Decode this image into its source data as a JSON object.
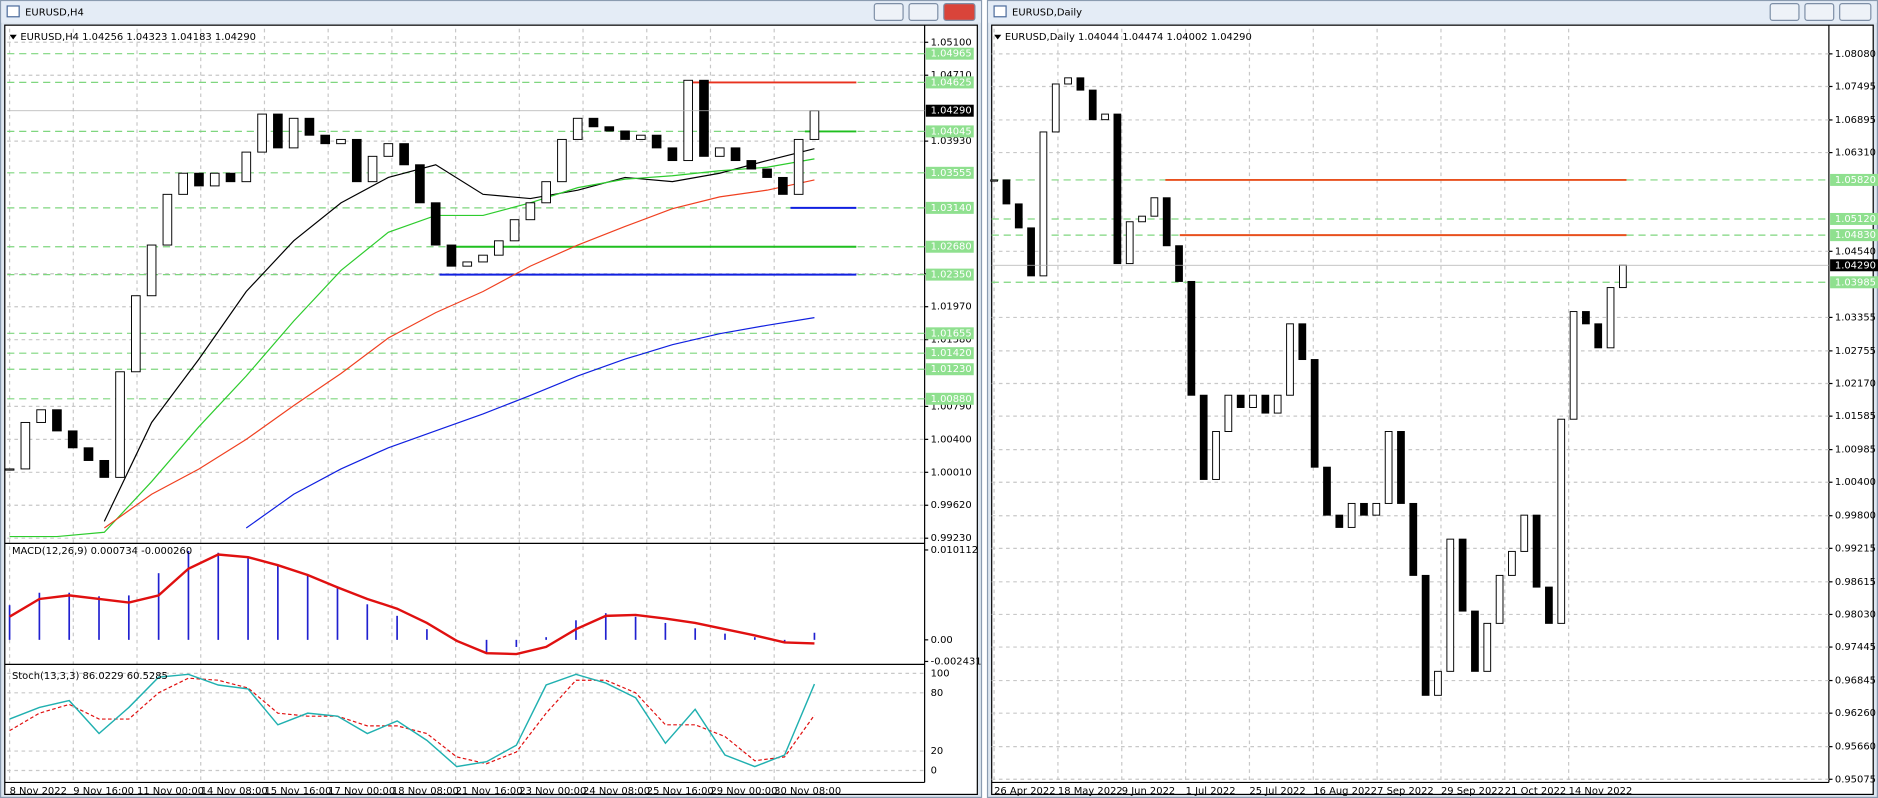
{
  "windows": [
    {
      "title": "EURUSD,H4",
      "info": "EURUSD,H4  1.04256 1.04323 1.04183 1.04290",
      "price": {
        "ylim": [
          0.9919,
          1.0526
        ],
        "yticks": [
          {
            "value": 1.051,
            "label": "1.05100"
          },
          {
            "value": 1.0471,
            "label": "1.04710"
          },
          {
            "value": 1.0393,
            "label": "1.03930"
          },
          {
            "value": 1.0236,
            "label": "1.02360"
          },
          {
            "value": 1.0197,
            "label": "1.01970"
          },
          {
            "value": 1.0158,
            "label": "1.01580"
          },
          {
            "value": 1.0079,
            "label": "1.00790"
          },
          {
            "value": 1.004,
            "label": "1.00400"
          },
          {
            "value": 1.0001,
            "label": "1.00010"
          },
          {
            "value": 0.9962,
            "label": "0.99620"
          },
          {
            "value": 0.9923,
            "label": "0.99230"
          }
        ],
        "levels": [
          {
            "value": 1.04965,
            "label": "1.04965"
          },
          {
            "value": 1.04625,
            "label": "1.04625",
            "segment_color": "#e8321e"
          },
          {
            "value": 1.04045,
            "label": "1.04045",
            "segment_color": "#1fbf1f"
          },
          {
            "value": 1.03555,
            "label": "1.03555"
          },
          {
            "value": 1.0314,
            "label": "1.03140",
            "segment_color": "#1020e0"
          },
          {
            "value": 1.0268,
            "label": "1.02680",
            "segment_color": "#1fbf1f"
          },
          {
            "value": 1.0235,
            "label": "1.02350",
            "segment_color": "#1020e0"
          },
          {
            "value": 1.01655,
            "label": "1.01655"
          },
          {
            "value": 1.0142,
            "label": "1.01420"
          },
          {
            "value": 1.0123,
            "label": "1.01230"
          },
          {
            "value": 1.0088,
            "label": "1.00880"
          }
        ],
        "current": {
          "value": 1.0429,
          "label": "1.04290"
        },
        "close": [
          1.0005,
          1.006,
          1.0075,
          1.005,
          1.003,
          1.0015,
          0.9995,
          1.012,
          1.021,
          1.027,
          1.033,
          1.0355,
          1.034,
          1.0355,
          1.0345,
          1.038,
          1.0425,
          1.0385,
          1.042,
          1.04,
          1.039,
          1.0395,
          1.0345,
          1.0375,
          1.039,
          1.0365,
          1.032,
          1.027,
          1.0245,
          1.025,
          1.0258,
          1.0275,
          1.03,
          1.032,
          1.0345,
          1.0395,
          1.042,
          1.041,
          1.0405,
          1.0395,
          1.04,
          1.0385,
          1.037,
          1.0465,
          1.0375,
          1.0385,
          1.037,
          1.036,
          1.035,
          1.033,
          1.0395,
          1.0429
        ],
        "ma": [
          {
            "color": "#000000",
            "values": [
              null,
              null,
              0.9943,
              1.006,
              1.0135,
              1.0215,
              1.0275,
              1.032,
              1.035,
              1.0365,
              1.033,
              1.0325,
              1.0335,
              1.035,
              1.0345,
              1.0355,
              1.037,
              1.0384
            ]
          },
          {
            "color": "#2ecc2e",
            "values": [
              0.9925,
              0.9925,
              0.993,
              0.999,
              1.0055,
              1.0115,
              1.018,
              1.024,
              1.0285,
              1.0305,
              1.0305,
              1.032,
              1.0338,
              1.0348,
              1.0352,
              1.0358,
              1.0362,
              1.0372
            ]
          },
          {
            "color": "#f04020",
            "values": [
              null,
              null,
              0.9935,
              0.9975,
              1.0005,
              1.004,
              1.008,
              1.0118,
              1.016,
              1.019,
              1.0215,
              1.0245,
              1.027,
              1.0292,
              1.0313,
              1.0327,
              1.0335,
              1.0347
            ]
          },
          {
            "color": "#1020e0",
            "values": [
              null,
              null,
              null,
              null,
              null,
              0.9935,
              0.9975,
              1.0005,
              1.003,
              1.005,
              1.007,
              1.0092,
              1.0115,
              1.0135,
              1.0152,
              1.0165,
              1.0175,
              1.0184
            ]
          }
        ]
      },
      "time_labels": [
        "8 Nov 2022",
        "9 Nov 16:00",
        "11 Nov 00:00",
        "14 Nov 08:00",
        "15 Nov 16:00",
        "17 Nov 00:00",
        "18 Nov 08:00",
        "21 Nov 16:00",
        "23 Nov 00:00",
        "24 Nov 08:00",
        "25 Nov 16:00",
        "29 Nov 00:00",
        "30 Nov 08:00"
      ],
      "macd": {
        "label": "MACD(12,26,9) 0.000734 -0.000260",
        "ylim": [
          -0.00256,
          0.01065
        ],
        "yticks": [
          0.010112,
          {
            "value": 0,
            "label": "0.00"
          },
          -0.002431
        ],
        "histogram": [
          0.0039,
          0.0053,
          0.0053,
          0.0049,
          0.005,
          0.0075,
          0.01,
          0.0098,
          0.0092,
          0.0084,
          0.0073,
          0.0059,
          0.004,
          0.0027,
          0.0012,
          -0.0001,
          -0.0015,
          -0.0008,
          0.0003,
          0.0022,
          0.003,
          0.0026,
          0.0019,
          0.0013,
          0.0007,
          0.0003,
          -0.0003,
          0.0008
        ],
        "signal": [
          0.0026,
          0.0046,
          0.005,
          0.0046,
          0.0042,
          0.005,
          0.008,
          0.0096,
          0.0093,
          0.0084,
          0.0073,
          0.0059,
          0.0046,
          0.0035,
          0.0019,
          -0.0001,
          -0.0015,
          -0.0016,
          -0.0008,
          0.0012,
          0.0027,
          0.0028,
          0.0024,
          0.0019,
          0.0012,
          0.0005,
          -0.0003,
          -0.0004
        ]
      },
      "stoch": {
        "label": "Stoch(13,3,3) 86.0229 60.5285",
        "ylim": [
          -8.6,
          107.4
        ],
        "yticks": [
          100,
          80,
          20,
          0
        ],
        "main": [
          53,
          65,
          72,
          38,
          65,
          96,
          99,
          88,
          84,
          47,
          59,
          56,
          38,
          51,
          31,
          4,
          9,
          26,
          88,
          99,
          90,
          75,
          28,
          63,
          16,
          4,
          16,
          89
        ],
        "signal": [
          41,
          59,
          68,
          53,
          53,
          80,
          95,
          93,
          85,
          59,
          56,
          56,
          46,
          46,
          38,
          14,
          7,
          19,
          59,
          93,
          93,
          80,
          47,
          47,
          35,
          10,
          14,
          57
        ]
      }
    },
    {
      "title": "EURUSD,Daily",
      "info": "EURUSD,Daily  1.04044 1.04474 1.04002 1.04290",
      "price": {
        "ylim": [
          0.9504,
          1.0853
        ],
        "yticks": [
          {
            "value": 1.0808,
            "label": "1.08080"
          },
          {
            "value": 1.07495,
            "label": "1.07495"
          },
          {
            "value": 1.06895,
            "label": "1.06895"
          },
          {
            "value": 1.0631,
            "label": "1.06310"
          },
          {
            "value": 1.0454,
            "label": "1.04540"
          },
          {
            "value": 1.03355,
            "label": "1.03355"
          },
          {
            "value": 1.02755,
            "label": "1.02755"
          },
          {
            "value": 1.0217,
            "label": "1.02170"
          },
          {
            "value": 1.01585,
            "label": "1.01585"
          },
          {
            "value": 1.00985,
            "label": "1.00985"
          },
          {
            "value": 1.004,
            "label": "1.00400"
          },
          {
            "value": 0.998,
            "label": "0.99800"
          },
          {
            "value": 0.99215,
            "label": "0.99215"
          },
          {
            "value": 0.98615,
            "label": "0.98615"
          },
          {
            "value": 0.9803,
            "label": "0.98030"
          },
          {
            "value": 0.97445,
            "label": "0.97445"
          },
          {
            "value": 0.96845,
            "label": "0.96845"
          },
          {
            "value": 0.9626,
            "label": "0.96260"
          },
          {
            "value": 0.9566,
            "label": "0.95660"
          },
          {
            "value": 0.95075,
            "label": "0.95075"
          }
        ],
        "levels": [
          {
            "value": 1.0582,
            "label": "1.05820",
            "segment_color": "#e8501e"
          },
          {
            "value": 1.0512,
            "label": "1.05120"
          },
          {
            "value": 1.0483,
            "label": "1.04830",
            "segment_color": "#e8501e"
          },
          {
            "value": 1.03985,
            "label": "1.03985"
          }
        ],
        "current": {
          "value": 1.0429,
          "label": "1.04290"
        },
        "close": [
          1.0582,
          1.0539,
          1.0496,
          1.041,
          1.0668,
          1.0754,
          1.0765,
          1.0743,
          1.069,
          1.07,
          1.0432,
          1.0507,
          1.0517,
          1.055,
          1.0464,
          1.04,
          1.0196,
          1.0045,
          1.0131,
          1.0196,
          1.0174,
          1.0196,
          1.0164,
          1.0196,
          1.0324,
          1.026,
          1.0067,
          0.9981,
          0.9959,
          1.0002,
          0.9981,
          1.0002,
          1.0131,
          1.0002,
          0.9873,
          0.9658,
          0.9701,
          0.9938,
          0.9809,
          0.9701,
          0.9787,
          0.9873,
          0.9916,
          0.9981,
          0.9852,
          0.9787,
          1.0153,
          1.0346,
          1.0324,
          1.0281,
          1.0389,
          1.0429
        ],
        "ma": []
      },
      "time_labels": [
        "26 Apr 2022",
        "18 May 2022",
        "9 Jun 2022",
        "1 Jul 2022",
        "25 Jul 2022",
        "16 Aug 2022",
        "7 Sep 2022",
        "29 Sep 2022",
        "21 Oct 2022",
        "14 Nov 2022"
      ]
    }
  ]
}
